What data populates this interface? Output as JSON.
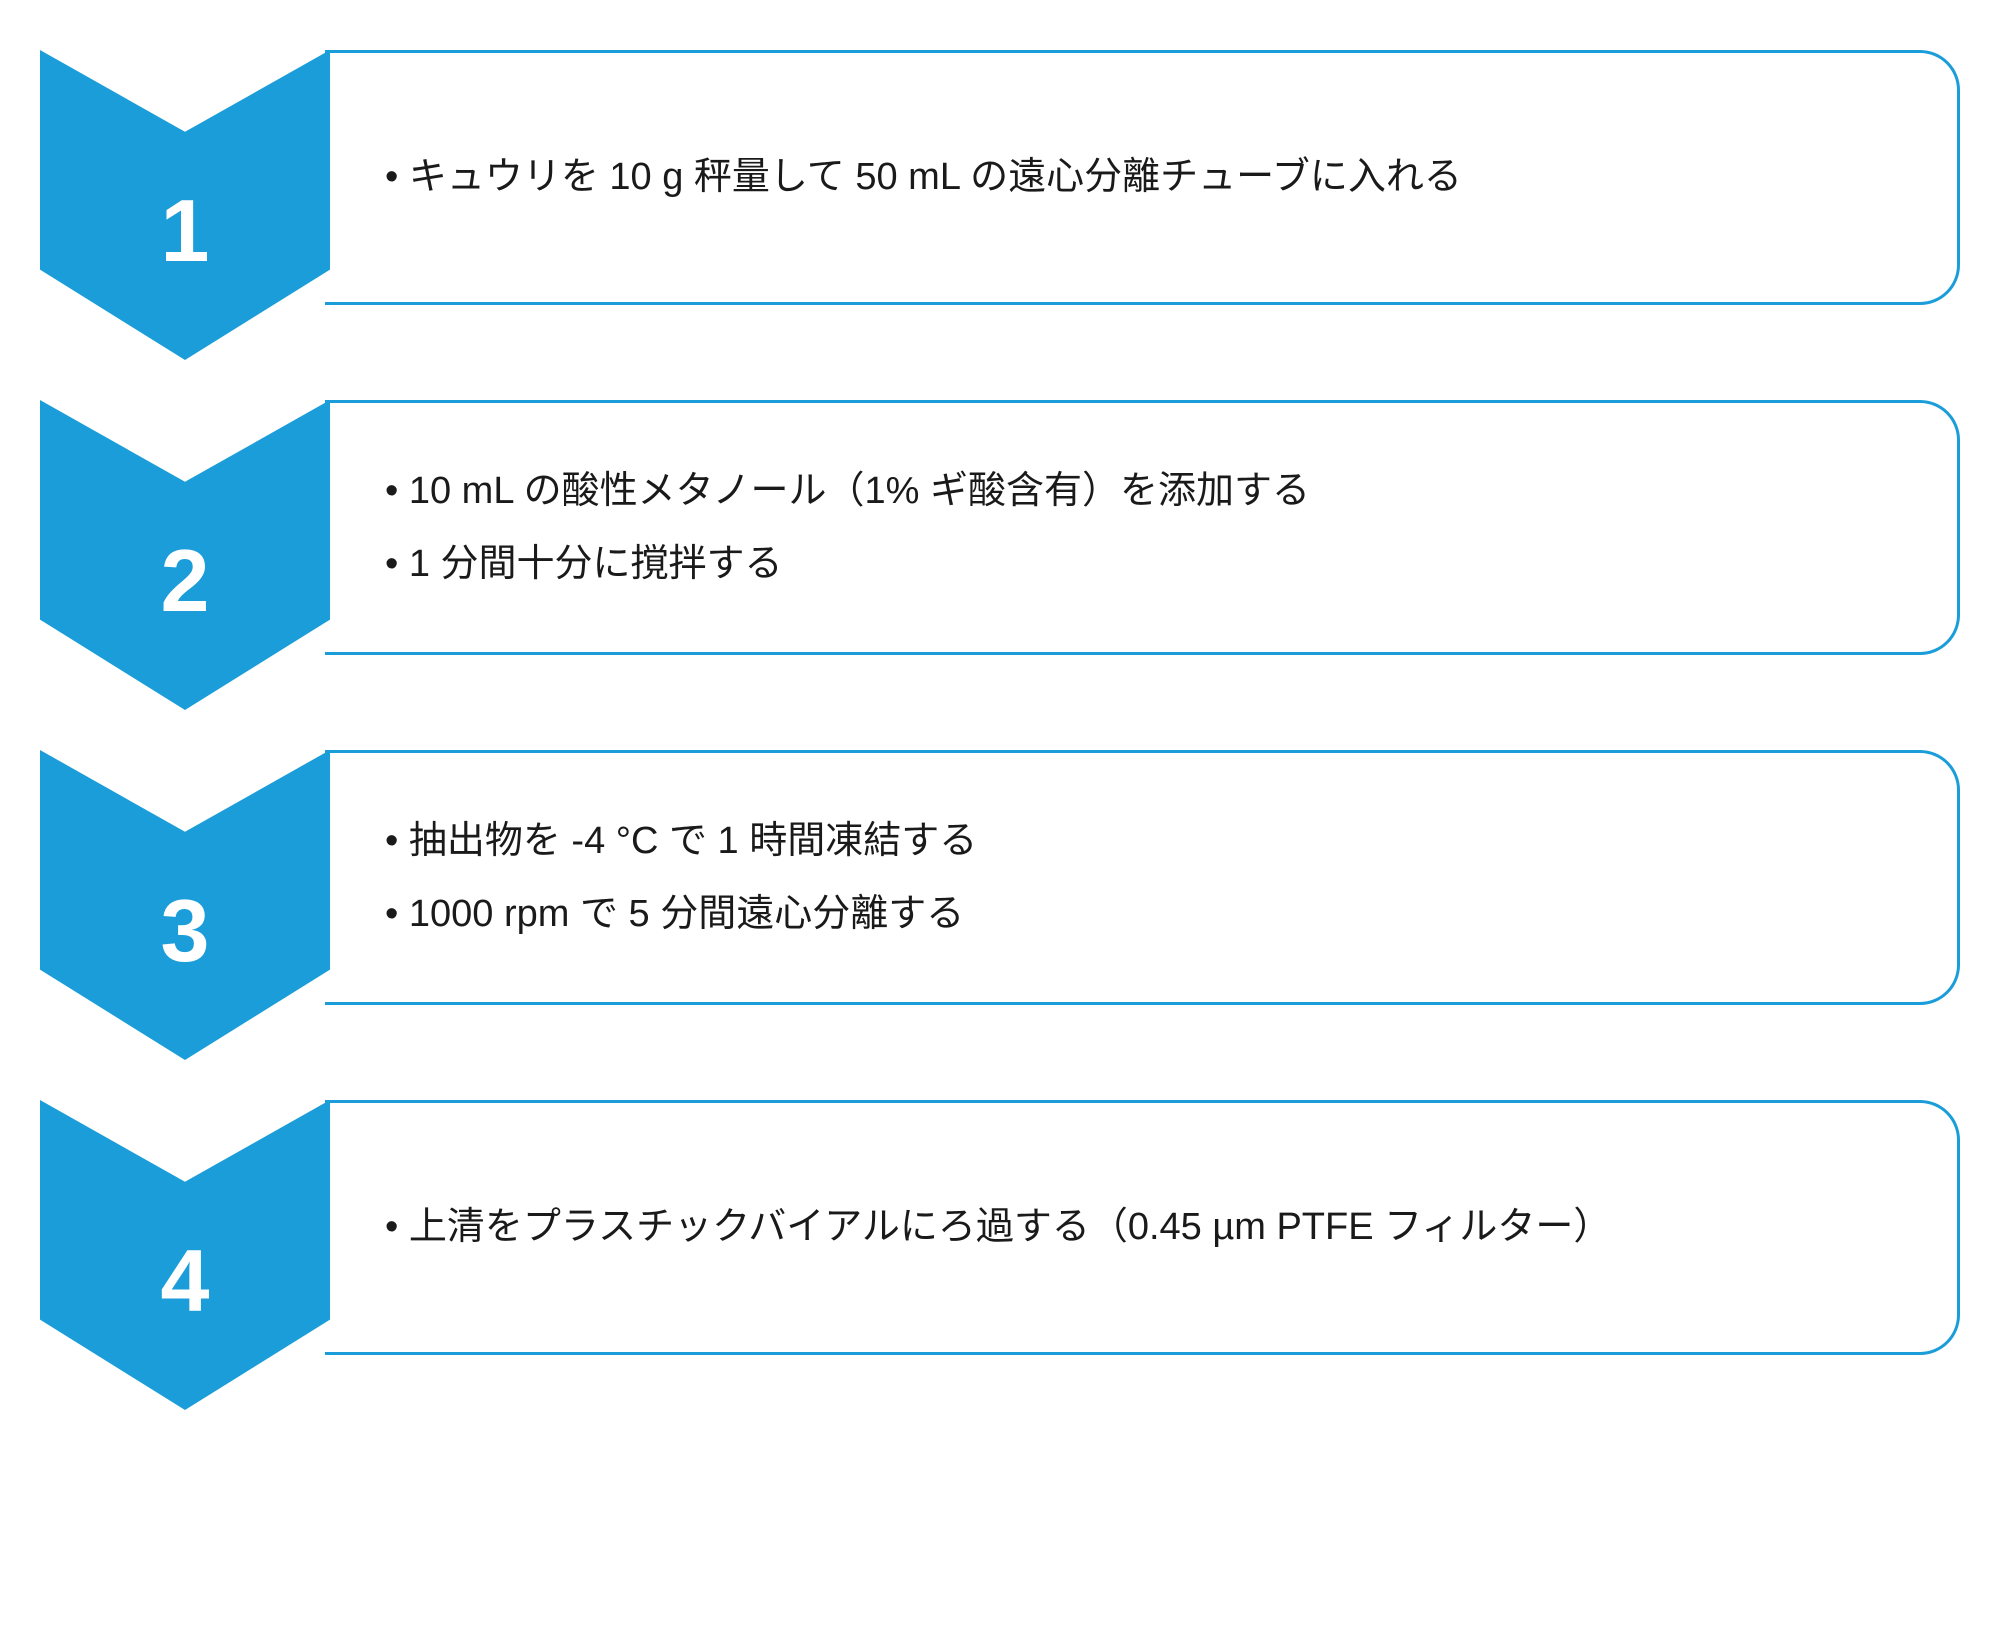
{
  "diagram": {
    "type": "process-flow-chevron",
    "chevron_color": "#1a9dd9",
    "border_color": "#1a9dd9",
    "background_color": "#ffffff",
    "text_color": "#1a1a1a",
    "number_color": "#ffffff",
    "number_fontsize": 88,
    "number_fontweight": 700,
    "bullet_fontsize": 38,
    "steps": [
      {
        "number": "1",
        "bullets": [
          "キュウリを 10 g 秤量して 50 mL の遠心分離チューブに入れる"
        ]
      },
      {
        "number": "2",
        "bullets": [
          "10 mL の酸性メタノール（1% ギ酸含有）を添加する",
          "1 分間十分に撹拌する"
        ]
      },
      {
        "number": "3",
        "bullets": [
          "抽出物を -4 °C で 1 時間凍結する",
          "1000 rpm で 5 分間遠心分離する"
        ]
      },
      {
        "number": "4",
        "bullets": [
          "上清をプラスチックバイアルにろ過する（0.45 µm PTFE フィルター）"
        ]
      }
    ]
  }
}
